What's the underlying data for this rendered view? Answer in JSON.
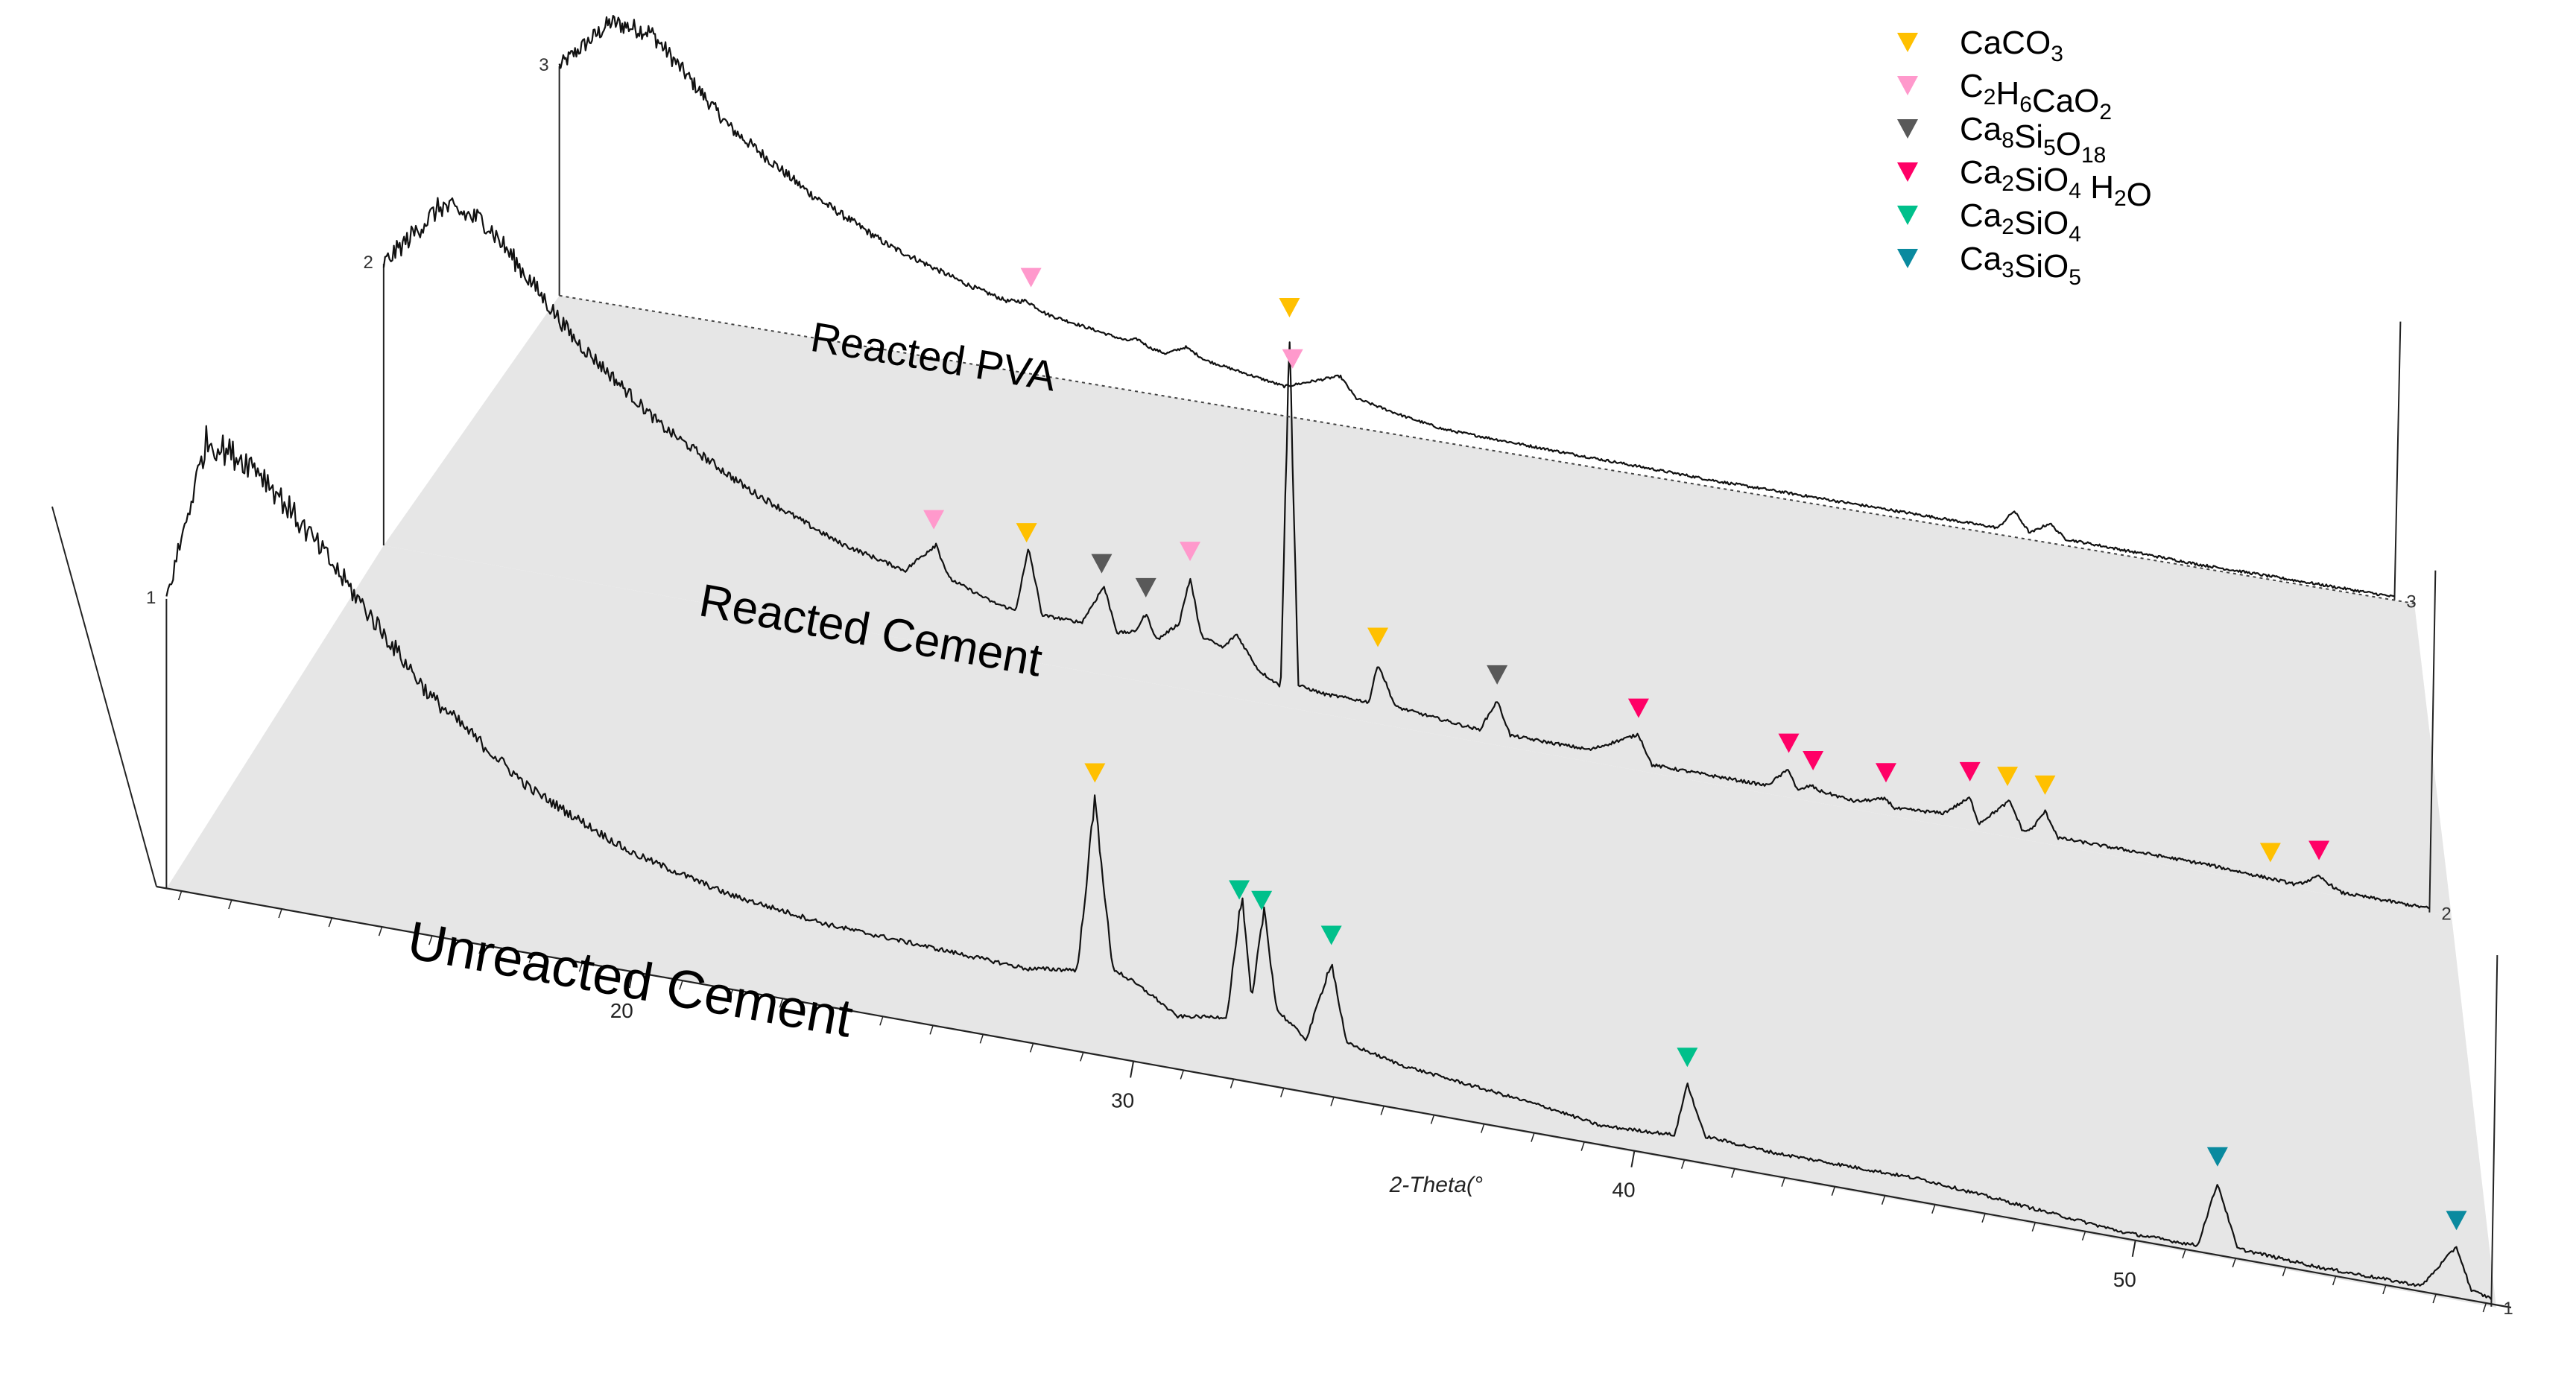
{
  "chart_data": {
    "type": "line",
    "style": "3D stacked waterfall of XRD patterns",
    "xlabel": "2-Theta(°",
    "x_ticks": [
      20,
      30,
      40,
      50
    ],
    "xlim": [
      10.5,
      57.5
    ],
    "legend_placement": "top-right",
    "legend": [
      {
        "label": "CaCO",
        "sub": "3",
        "color": "#FFC000"
      },
      {
        "label": "C",
        "sub": "2",
        "label2": "H",
        "sub2": "6",
        "label3": "CaO",
        "sub3": "2",
        "color": "#FF99CC"
      },
      {
        "label": "Ca",
        "sub": "8",
        "label2": "Si",
        "sub2": "5",
        "label3": "O",
        "sub3": "18",
        "color": "#595959"
      },
      {
        "label": "Ca",
        "sub": "2",
        "label2": "SiO",
        "sub2": "4",
        "label3": " H",
        "sub3": "2",
        "label4": "O",
        "color": "#FF0066"
      },
      {
        "label": "Ca",
        "sub": "2",
        "label2": "SiO",
        "sub2": "4",
        "color": "#00C08B"
      },
      {
        "label": "Ca",
        "sub": "3",
        "label2": "SiO",
        "sub2": "5",
        "color": "#0A8A9F"
      }
    ],
    "series": [
      {
        "index": "1",
        "name": "Unreacted Cement",
        "points": [
          [
            10.7,
            0.7
          ],
          [
            11.5,
            1.1
          ],
          [
            12.5,
            1.06
          ],
          [
            14,
            0.86
          ],
          [
            16,
            0.58
          ],
          [
            18,
            0.4
          ],
          [
            20,
            0.29
          ],
          [
            22,
            0.23
          ],
          [
            24,
            0.2
          ],
          [
            26,
            0.19
          ],
          [
            28,
            0.18
          ],
          [
            29,
            0.2
          ],
          [
            29.35,
            0.62
          ],
          [
            29.7,
            0.22
          ],
          [
            30.5,
            0.17
          ],
          [
            31,
            0.13
          ],
          [
            32,
            0.15
          ],
          [
            32.3,
            0.45
          ],
          [
            32.5,
            0.2
          ],
          [
            32.75,
            0.43
          ],
          [
            33,
            0.19
          ],
          [
            33.6,
            0.13
          ],
          [
            34.1,
            0.33
          ],
          [
            34.4,
            0.14
          ],
          [
            35.5,
            0.11
          ],
          [
            37,
            0.09
          ],
          [
            38.5,
            0.07
          ],
          [
            39.5,
            0.05
          ],
          [
            41,
            0.06
          ],
          [
            41.25,
            0.19
          ],
          [
            41.6,
            0.07
          ],
          [
            43,
            0.06
          ],
          [
            46,
            0.06
          ],
          [
            50,
            0.02
          ],
          [
            51.5,
            0.02
          ],
          [
            51.9,
            0.18
          ],
          [
            52.3,
            0.03
          ],
          [
            54,
            0.02
          ],
          [
            56,
            0.02
          ],
          [
            56.7,
            0.13
          ],
          [
            57,
            0.03
          ],
          [
            57.4,
            0.02
          ]
        ],
        "peaks": [
          {
            "x": 29.35,
            "phase": "CaCO3"
          },
          {
            "x": 32.25,
            "phase": "Ca2SiO4"
          },
          {
            "x": 32.7,
            "phase": "Ca2SiO4"
          },
          {
            "x": 34.1,
            "phase": "Ca2SiO4"
          },
          {
            "x": 41.25,
            "phase": "Ca2SiO4"
          },
          {
            "x": 51.9,
            "phase": "Ca3SiO5"
          },
          {
            "x": 56.7,
            "phase": "Ca3SiO5"
          }
        ]
      },
      {
        "index": "2",
        "name": "Reacted  Cement",
        "points": [
          [
            10.7,
            0.7
          ],
          [
            12,
            0.87
          ],
          [
            13,
            0.85
          ],
          [
            15,
            0.6
          ],
          [
            17,
            0.42
          ],
          [
            19,
            0.3
          ],
          [
            21,
            0.21
          ],
          [
            22.5,
            0.17
          ],
          [
            23.2,
            0.25
          ],
          [
            23.5,
            0.17
          ],
          [
            24.5,
            0.13
          ],
          [
            25,
            0.12
          ],
          [
            25.3,
            0.28
          ],
          [
            25.6,
            0.12
          ],
          [
            26.5,
            0.12
          ],
          [
            27,
            0.22
          ],
          [
            27.3,
            0.11
          ],
          [
            27.7,
            0.12
          ],
          [
            27.95,
            0.17
          ],
          [
            28.2,
            0.11
          ],
          [
            28.7,
            0.16
          ],
          [
            28.95,
            0.28
          ],
          [
            29.2,
            0.14
          ],
          [
            29.7,
            0.12
          ],
          [
            30,
            0.16
          ],
          [
            30.5,
            0.08
          ],
          [
            31,
            0.05
          ],
          [
            31.2,
            0.93
          ],
          [
            31.4,
            0.06
          ],
          [
            32,
            0.05
          ],
          [
            33,
            0.05
          ],
          [
            33.2,
            0.15
          ],
          [
            33.6,
            0.05
          ],
          [
            35.5,
            0.03
          ],
          [
            35.9,
            0.11
          ],
          [
            36.2,
            0.03
          ],
          [
            38,
            0.03
          ],
          [
            39.1,
            0.09
          ],
          [
            39.4,
            0.02
          ],
          [
            42,
            0.02
          ],
          [
            42.5,
            0.07
          ],
          [
            42.7,
            0.02
          ],
          [
            43,
            0.04
          ],
          [
            43.2,
            0.03
          ],
          [
            44,
            0.02
          ],
          [
            44.7,
            0.04
          ],
          [
            44.9,
            0.02
          ],
          [
            46,
            0.03
          ],
          [
            46.6,
            0.08
          ],
          [
            46.8,
            0.02
          ],
          [
            47.5,
            0.09
          ],
          [
            47.8,
            0.02
          ],
          [
            48,
            0.03
          ],
          [
            48.3,
            0.08
          ],
          [
            48.6,
            0.02
          ],
          [
            50,
            0.02
          ],
          [
            52,
            0.02
          ],
          [
            54,
            0.01
          ],
          [
            54.5,
            0.04
          ],
          [
            55,
            0.01
          ],
          [
            57,
            0.01
          ]
        ],
        "peaks": [
          {
            "x": 23.15,
            "phase": "C2H6CaO2"
          },
          {
            "x": 25.25,
            "phase": "CaCO3"
          },
          {
            "x": 26.95,
            "phase": "Ca8Si5O18"
          },
          {
            "x": 27.95,
            "phase": "Ca8Si5O18"
          },
          {
            "x": 28.95,
            "phase": "C2H6CaO2"
          },
          {
            "x": 31.2,
            "phase": "CaCO3"
          },
          {
            "x": 33.2,
            "phase": "CaCO3"
          },
          {
            "x": 35.9,
            "phase": "Ca8Si5O18"
          },
          {
            "x": 39.1,
            "phase": "Ca2SiO4 H2O"
          },
          {
            "x": 42.5,
            "phase": "Ca2SiO4 H2O"
          },
          {
            "x": 43.05,
            "phase": "Ca2SiO4 H2O"
          },
          {
            "x": 44.7,
            "phase": "Ca2SiO4 H2O"
          },
          {
            "x": 46.6,
            "phase": "Ca2SiO4 H2O"
          },
          {
            "x": 47.45,
            "phase": "CaCO3"
          },
          {
            "x": 48.3,
            "phase": "CaCO3"
          },
          {
            "x": 53.4,
            "phase": "CaCO3"
          },
          {
            "x": 54.5,
            "phase": "Ca2SiO4 H2O"
          }
        ]
      },
      {
        "index": "3",
        "name": "Reacted PVA",
        "points": [
          [
            10.7,
            0.7
          ],
          [
            12,
            0.86
          ],
          [
            13,
            0.85
          ],
          [
            15,
            0.6
          ],
          [
            17,
            0.44
          ],
          [
            19,
            0.32
          ],
          [
            21,
            0.24
          ],
          [
            22,
            0.21
          ],
          [
            22.5,
            0.22
          ],
          [
            23,
            0.19
          ],
          [
            25,
            0.15
          ],
          [
            25.3,
            0.16
          ],
          [
            25.6,
            0.14
          ],
          [
            26,
            0.13
          ],
          [
            26.5,
            0.16
          ],
          [
            27,
            0.13
          ],
          [
            29,
            0.09
          ],
          [
            30.4,
            0.15
          ],
          [
            30.8,
            0.09
          ],
          [
            32,
            0.06
          ],
          [
            33,
            0.04
          ],
          [
            36,
            0.03
          ],
          [
            40,
            0.02
          ],
          [
            45,
            0.02
          ],
          [
            47,
            0.02
          ],
          [
            47.4,
            0.08
          ],
          [
            47.8,
            0.02
          ],
          [
            48.3,
            0.06
          ],
          [
            48.7,
            0.02
          ],
          [
            52,
            0.01
          ],
          [
            57,
            0.01
          ]
        ],
        "peaks": [
          {
            "x": 22.6,
            "phase": "C2H6CaO2"
          },
          {
            "x": 29.2,
            "phase": "C2H6CaO2"
          }
        ]
      }
    ]
  }
}
